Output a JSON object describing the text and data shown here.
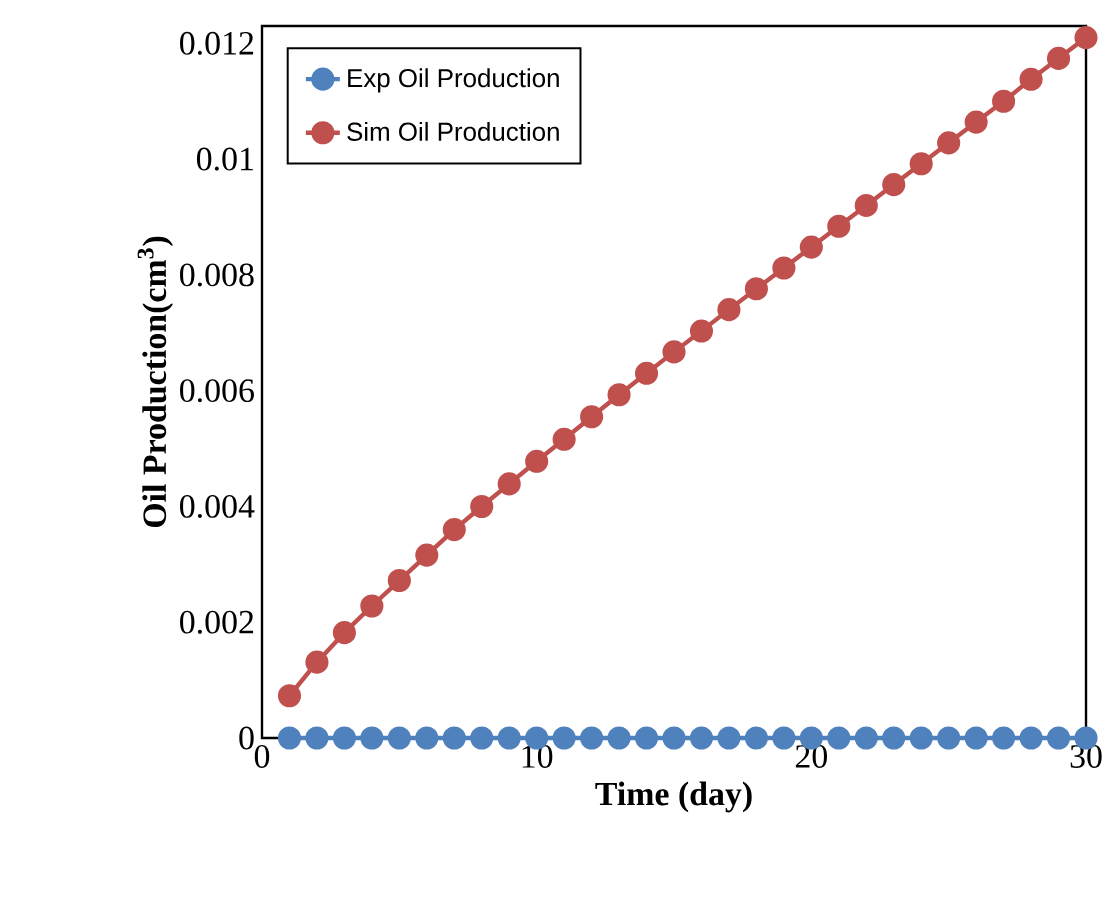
{
  "chart_data": {
    "type": "line",
    "xlabel": "Time (day)",
    "ylabel": "Oil Production(cm$^{3}$)",
    "x": [
      1,
      2,
      3,
      4,
      5,
      6,
      7,
      8,
      9,
      10,
      11,
      12,
      13,
      14,
      15,
      16,
      17,
      18,
      19,
      20,
      21,
      22,
      23,
      24,
      25,
      26,
      27,
      28,
      29,
      30
    ],
    "series": [
      {
        "name": "Exp Oil Production",
        "color": "#4f81bd",
        "values": [
          0,
          0,
          0,
          0,
          0,
          0,
          0,
          0,
          0,
          0,
          0,
          0,
          0,
          0,
          0,
          0,
          0,
          0,
          0,
          0,
          0,
          0,
          0,
          0,
          0,
          0,
          0,
          0,
          0,
          0
        ]
      },
      {
        "name": "Sim Oil Production",
        "color": "#c0504d",
        "values": [
          0.00073,
          0.00131,
          0.00182,
          0.00228,
          0.00272,
          0.00316,
          0.0036,
          0.004,
          0.00439,
          0.00478,
          0.00516,
          0.00555,
          0.00593,
          0.0063,
          0.00667,
          0.00703,
          0.0074,
          0.00776,
          0.00812,
          0.00848,
          0.00884,
          0.0092,
          0.00956,
          0.00992,
          0.01028,
          0.01064,
          0.011,
          0.01138,
          0.01174,
          0.0121
        ]
      }
    ],
    "xlim": [
      0,
      30
    ],
    "xticks": [
      0,
      10,
      20,
      30
    ],
    "ylim": [
      0,
      0.0123
    ],
    "yticks": [
      0,
      0.002,
      0.004,
      0.006,
      0.008,
      0.01,
      0.012
    ],
    "grid": false,
    "legend": "top left",
    "marker": "circle",
    "line_style": "solid"
  }
}
